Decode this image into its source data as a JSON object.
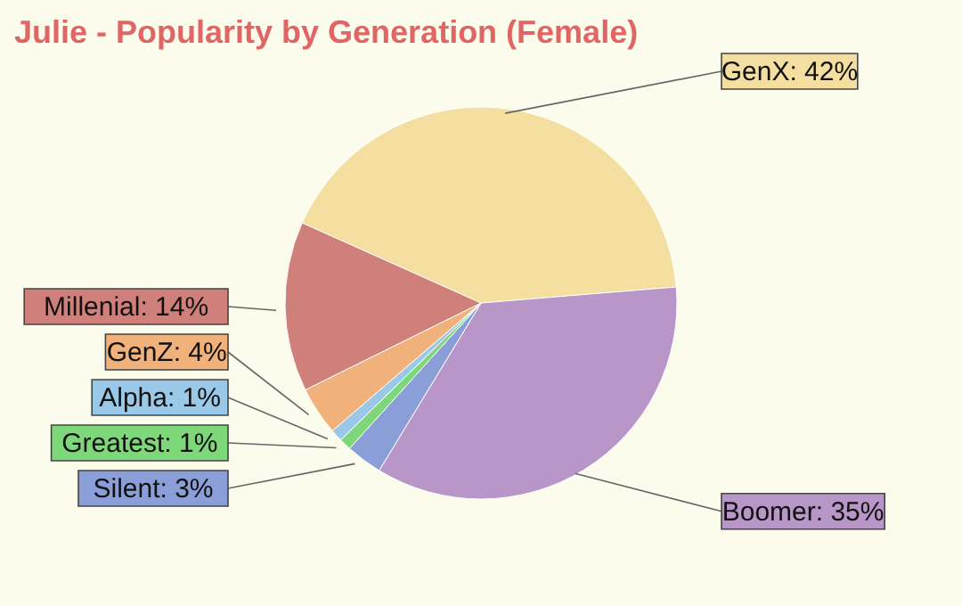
{
  "chart_data": {
    "type": "pie",
    "title": "Julie - Popularity by Generation (Female)",
    "categories": [
      "GenX",
      "Boomer",
      "Silent",
      "Greatest",
      "Alpha",
      "GenZ",
      "Millenial"
    ],
    "values": [
      42,
      35,
      3,
      1,
      1,
      4,
      14
    ],
    "value_labels": [
      "42%",
      "35%",
      "3%",
      "1%",
      "1%",
      "4%",
      "14%"
    ],
    "colors": [
      "#f5dfa0",
      "#b996c8",
      "#8a9fd8",
      "#7ed87a",
      "#9ac8e8",
      "#f0b27a",
      "#d0807a"
    ]
  }
}
